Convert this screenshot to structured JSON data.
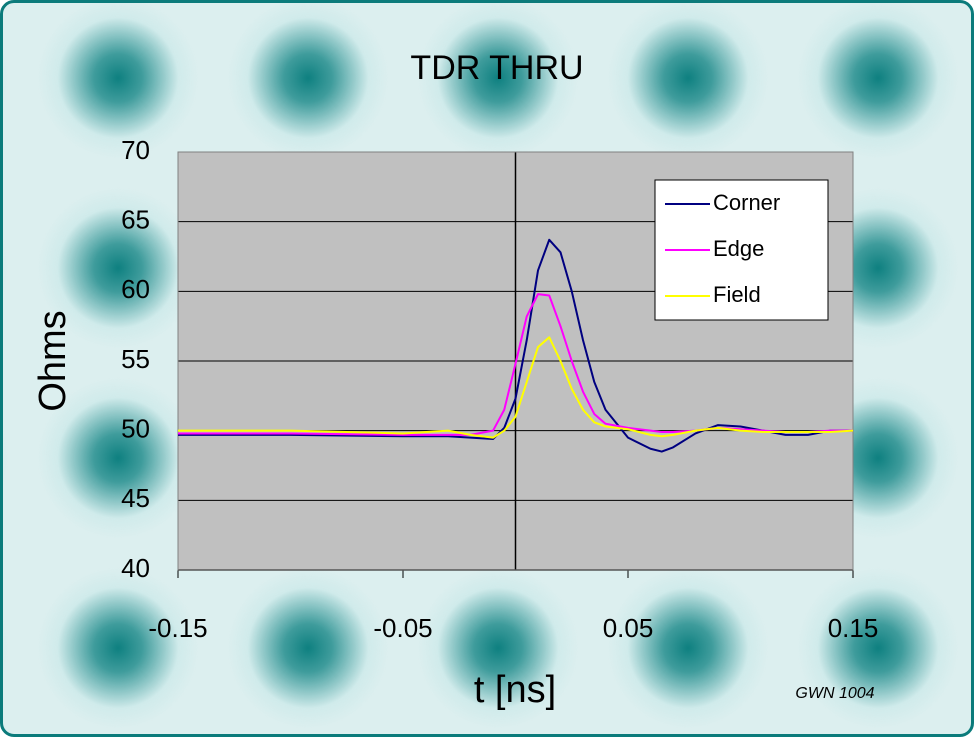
{
  "chart_data": {
    "type": "line",
    "title": "TDR THRU",
    "x_label": "t [ns]",
    "y_label": "Ohms",
    "annotation": "GWN 1004",
    "x": [
      -0.15,
      -0.1,
      -0.05,
      -0.03,
      -0.02,
      -0.01,
      -0.005,
      0,
      0.005,
      0.01,
      0.015,
      0.02,
      0.025,
      0.03,
      0.035,
      0.04,
      0.05,
      0.06,
      0.065,
      0.07,
      0.08,
      0.09,
      0.1,
      0.11,
      0.12,
      0.13,
      0.14,
      0.15
    ],
    "series": [
      {
        "name": "Corner",
        "color": "#000080",
        "values": [
          49.7,
          49.7,
          49.6,
          49.6,
          49.5,
          49.4,
          50.2,
          52.3,
          56.5,
          61.5,
          63.7,
          62.8,
          60,
          56.5,
          53.5,
          51.5,
          49.5,
          48.7,
          48.5,
          48.8,
          49.8,
          50.4,
          50.3,
          50,
          49.7,
          49.7,
          50,
          50
        ]
      },
      {
        "name": "Edge",
        "color": "#ff00ff",
        "values": [
          49.8,
          49.8,
          49.7,
          49.7,
          49.7,
          50,
          51.5,
          54.8,
          58.2,
          59.8,
          59.7,
          57.5,
          55,
          52.8,
          51.2,
          50.5,
          50.2,
          50,
          49.9,
          49.9,
          50,
          50.2,
          50.1,
          50,
          49.9,
          49.9,
          50,
          50
        ]
      },
      {
        "name": "Field",
        "color": "#ffff00",
        "values": [
          50,
          50,
          49.8,
          50,
          49.7,
          49.5,
          50,
          51,
          53.5,
          56,
          56.7,
          55,
          53,
          51.5,
          50.6,
          50.3,
          50.1,
          49.7,
          49.6,
          49.7,
          50,
          50.2,
          50,
          49.9,
          49.9,
          49.9,
          49.9,
          50
        ]
      }
    ],
    "xlim": [
      -0.15,
      0.15
    ],
    "xticks": [
      -0.15,
      -0.05,
      0.05,
      0.15
    ],
    "ylim": [
      40,
      70
    ],
    "yticks": [
      40,
      45,
      50,
      55,
      60,
      65,
      70
    ],
    "grid": true,
    "legend": "upper right"
  }
}
